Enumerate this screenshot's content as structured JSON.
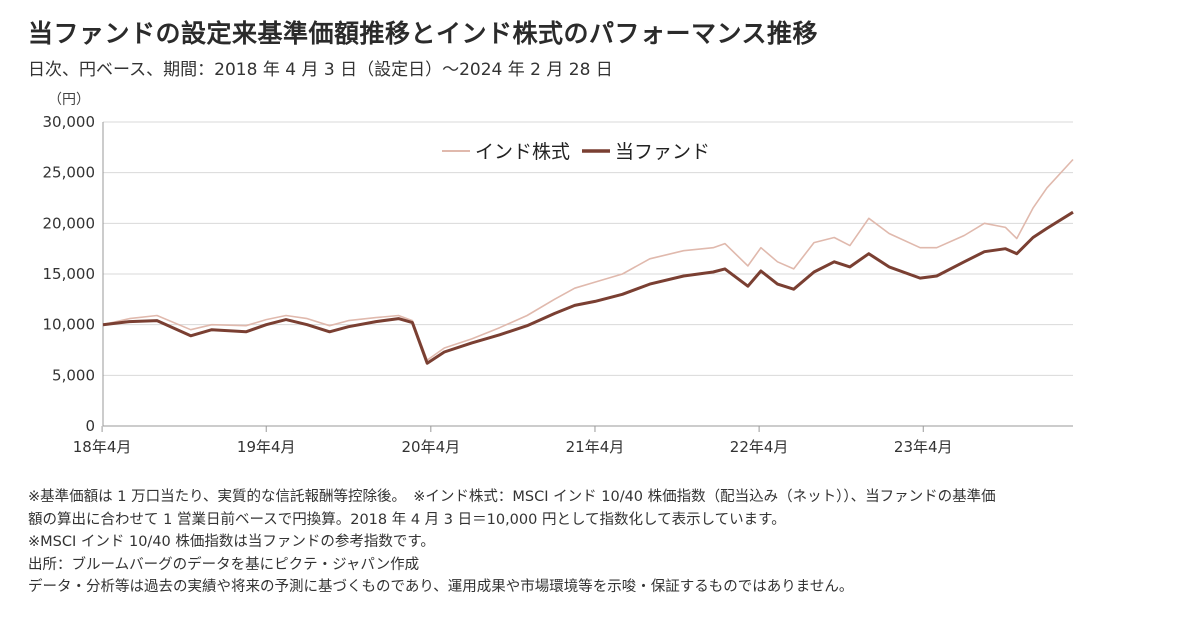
{
  "title": "当ファンドの設定来基準価額推移とインド株式のパフォーマンス推移",
  "subtitle": "日次、円ベース、期間：2018 年 4 月 3 日（設定日）～2024 年 2 月 28 日",
  "footnotes": [
    "※基準価額は 1 万口当たり、実質的な信託報酬等控除後。　※インド株式：MSCI インド 10/40 株価指数（配当込み（ネット））、当ファンドの基準価",
    "額の算出に合わせて 1 営業日前ベースで円換算。2018 年 4 月 3 日＝10,000 円として指数化して表示しています。",
    "※MSCI インド 10/40 株価指数は当ファンドの参考指数です。",
    "出所：ブルームバーグのデータを基にピクテ・ジャパン作成",
    "データ・分析等は過去の実績や将来の予測に基づくものであり、運用成果や市場環境等を示唆・保証するものではありません。"
  ],
  "chart_data": {
    "type": "line",
    "title": "当ファンドの設定来基準価額推移とインド株式のパフォーマンス推移",
    "ylabel": "（円）",
    "ylim": [
      0,
      30000
    ],
    "yticks": [
      0,
      5000,
      10000,
      15000,
      20000,
      25000,
      30000
    ],
    "ytick_labels": [
      "0",
      "5,000",
      "10,000",
      "15,000",
      "20,000",
      "25,000",
      "30,000"
    ],
    "xlim": [
      "2018-04-03",
      "2024-02-28"
    ],
    "xticks": [
      "2018-04",
      "2019-04",
      "2020-04",
      "2021-04",
      "2022-04",
      "2023-04"
    ],
    "xtick_labels": [
      "18年4月",
      "19年4月",
      "20年4月",
      "21年4月",
      "22年4月",
      "23年4月"
    ],
    "grid": true,
    "legend": "top-center",
    "series": [
      {
        "name": "インド株式",
        "color": "#e0b9ad",
        "x": [
          "2018-04-03",
          "2018-06-01",
          "2018-08-01",
          "2018-10-15",
          "2018-12-01",
          "2019-02-15",
          "2019-04-01",
          "2019-05-15",
          "2019-07-01",
          "2019-08-20",
          "2019-10-01",
          "2019-12-01",
          "2020-01-20",
          "2020-02-20",
          "2020-03-24",
          "2020-05-01",
          "2020-07-01",
          "2020-09-01",
          "2020-11-01",
          "2021-01-01",
          "2021-02-15",
          "2021-04-01",
          "2021-06-01",
          "2021-08-01",
          "2021-10-15",
          "2021-12-20",
          "2022-01-15",
          "2022-03-07",
          "2022-04-05",
          "2022-05-12",
          "2022-06-17",
          "2022-08-01",
          "2022-09-15",
          "2022-10-20",
          "2022-12-01",
          "2023-01-15",
          "2023-03-25",
          "2023-05-01",
          "2023-07-01",
          "2023-08-15",
          "2023-10-01",
          "2023-10-26",
          "2023-12-01",
          "2024-01-01",
          "2024-02-28"
        ],
        "values": [
          10000,
          10600,
          10900,
          9500,
          10000,
          9900,
          10500,
          10900,
          10600,
          9900,
          10400,
          10700,
          10900,
          10400,
          6500,
          7700,
          8600,
          9700,
          10900,
          12500,
          13600,
          14200,
          15000,
          16500,
          17300,
          17600,
          18000,
          15800,
          17600,
          16200,
          15500,
          18100,
          18600,
          17800,
          20500,
          19000,
          17600,
          17600,
          18800,
          20000,
          19600,
          18500,
          21500,
          23500,
          26300
        ]
      },
      {
        "name": "当ファンド",
        "color": "#7a3f32",
        "x": [
          "2018-04-03",
          "2018-06-01",
          "2018-08-01",
          "2018-10-15",
          "2018-12-01",
          "2019-02-15",
          "2019-04-01",
          "2019-05-15",
          "2019-07-01",
          "2019-08-20",
          "2019-10-01",
          "2019-12-01",
          "2020-01-20",
          "2020-02-20",
          "2020-03-24",
          "2020-05-01",
          "2020-07-01",
          "2020-09-01",
          "2020-11-01",
          "2021-01-01",
          "2021-02-15",
          "2021-04-01",
          "2021-06-01",
          "2021-08-01",
          "2021-10-15",
          "2021-12-20",
          "2022-01-15",
          "2022-03-07",
          "2022-04-05",
          "2022-05-12",
          "2022-06-17",
          "2022-08-01",
          "2022-09-15",
          "2022-10-20",
          "2022-12-01",
          "2023-01-15",
          "2023-03-25",
          "2023-05-01",
          "2023-07-01",
          "2023-08-15",
          "2023-10-01",
          "2023-10-26",
          "2023-12-01",
          "2024-01-01",
          "2024-02-28"
        ],
        "values": [
          10000,
          10300,
          10400,
          8900,
          9500,
          9300,
          10000,
          10500,
          10000,
          9300,
          9800,
          10300,
          10600,
          10200,
          6200,
          7300,
          8200,
          9000,
          9900,
          11100,
          11900,
          12300,
          13000,
          14000,
          14800,
          15200,
          15500,
          13800,
          15300,
          14000,
          13500,
          15200,
          16200,
          15700,
          17000,
          15700,
          14600,
          14800,
          16200,
          17200,
          17500,
          17000,
          18600,
          19500,
          21100
        ]
      }
    ]
  }
}
